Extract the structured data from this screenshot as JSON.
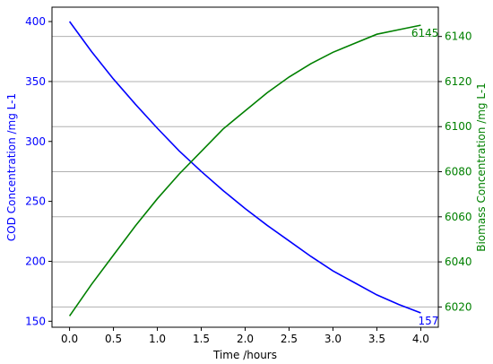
{
  "chart_data": {
    "type": "line",
    "xlabel": "Time /hours",
    "ylabel_left": "COD Concentration /mg L-1",
    "ylabel_right": "Biomass Concentration /mg L-1",
    "xlim": [
      -0.2,
      4.2
    ],
    "ylim_left": [
      145,
      412
    ],
    "ylim_right": [
      6011,
      6153
    ],
    "x_ticks": [
      "0.0",
      "0.5",
      "1.0",
      "1.5",
      "2.0",
      "2.5",
      "3.0",
      "3.5",
      "4.0"
    ],
    "y_left_ticks": [
      "150",
      "200",
      "250",
      "300",
      "350",
      "400"
    ],
    "y_right_ticks": [
      "6020",
      "6040",
      "6060",
      "6080",
      "6100",
      "6120",
      "6140"
    ],
    "grid": "horizontal, right axis",
    "colors": {
      "cod": "#0000ff",
      "biomass": "#008000",
      "grid": "#b0b0b0",
      "axes": "#000000"
    },
    "series": [
      {
        "axis": "left",
        "x": [
          0,
          0.25,
          0.5,
          0.75,
          1.0,
          1.25,
          1.5,
          1.75,
          2.0,
          2.25,
          2.5,
          2.75,
          3.0,
          3.25,
          3.5,
          3.75,
          4.0
        ],
        "values": [
          400,
          375,
          352,
          331,
          311,
          292,
          275,
          259,
          244,
          230,
          217,
          204,
          192,
          182,
          172,
          164,
          157
        ]
      },
      {
        "axis": "right",
        "x": [
          0,
          0.25,
          0.5,
          0.75,
          1.0,
          1.25,
          1.5,
          1.75,
          2.0,
          2.25,
          2.5,
          2.75,
          3.0,
          3.25,
          3.5,
          3.75,
          4.0
        ],
        "values": [
          6016,
          6030,
          6043,
          6056,
          6068,
          6079,
          6089,
          6099,
          6107,
          6115,
          6122,
          6128,
          6133,
          6137,
          6141,
          6143,
          6145
        ]
      }
    ],
    "annotations": [
      {
        "text": "6145",
        "axis": "right",
        "x": 4.0,
        "y": 6145,
        "color": "#008000"
      },
      {
        "text": "157",
        "axis": "left",
        "x": 4.0,
        "y": 157,
        "color": "#0000ff"
      }
    ]
  }
}
